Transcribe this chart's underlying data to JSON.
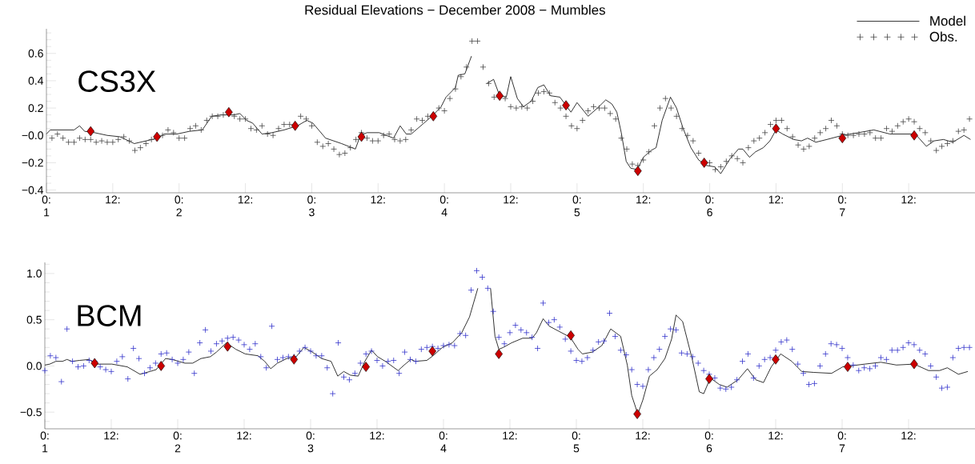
{
  "chart_data": [
    {
      "type": "line",
      "title": "Residual Elevations − December 2008 − Mumbles",
      "annotations": [
        "CS3X"
      ],
      "xlim": [
        "2008-12-01T00:00",
        "2008-12-08T00:00"
      ],
      "ylim": [
        -0.42,
        0.78
      ],
      "xticks": [
        {
          "value": "2008-12-01T00:00",
          "label": "0: 1"
        },
        {
          "value": "2008-12-01T12:00",
          "label": "12:"
        },
        {
          "value": "2008-12-02T00:00",
          "label": "0: 2"
        },
        {
          "value": "2008-12-02T12:00",
          "label": "12:"
        },
        {
          "value": "2008-12-03T00:00",
          "label": "0: 3"
        },
        {
          "value": "2008-12-03T12:00",
          "label": "12:"
        },
        {
          "value": "2008-12-04T00:00",
          "label": "0: 4"
        },
        {
          "value": "2008-12-04T12:00",
          "label": "12:"
        },
        {
          "value": "2008-12-05T00:00",
          "label": "0: 5"
        },
        {
          "value": "2008-12-05T12:00",
          "label": "12:"
        },
        {
          "value": "2008-12-06T00:00",
          "label": "0: 6"
        },
        {
          "value": "2008-12-06T12:00",
          "label": "12:"
        },
        {
          "value": "2008-12-07T00:00",
          "label": "0: 7"
        },
        {
          "value": "2008-12-07T12:00",
          "label": "12:"
        }
      ],
      "yticks": [
        {
          "value": -0.4,
          "label": "−0.4"
        },
        {
          "value": -0.2,
          "label": "−0.2"
        },
        {
          "value": 0,
          "label": "−0.0"
        },
        {
          "value": 0.2,
          "label": "0.2"
        },
        {
          "value": 0.4,
          "label": "0.4"
        },
        {
          "value": 0.6,
          "label": "0.6"
        },
        {
          "value": -0.35,
          "label": null
        },
        {
          "value": -0.3,
          "label": null
        },
        {
          "value": -0.25,
          "label": null
        },
        {
          "value": -0.15,
          "label": null
        },
        {
          "value": -0.1,
          "label": null
        },
        {
          "value": -0.05,
          "label": null
        },
        {
          "value": 0.05,
          "label": null
        },
        {
          "value": 0.1,
          "label": null
        },
        {
          "value": 0.15,
          "label": null
        },
        {
          "value": 0.25,
          "label": null
        },
        {
          "value": 0.3,
          "label": null
        },
        {
          "value": 0.35,
          "label": null
        },
        {
          "value": 0.45,
          "label": null
        },
        {
          "value": 0.5,
          "label": null
        },
        {
          "value": 0.55,
          "label": null
        },
        {
          "value": 0.65,
          "label": null
        },
        {
          "value": 0.7,
          "label": null
        },
        {
          "value": 0.75,
          "label": null
        }
      ],
      "legend": "top right",
      "series": [
        {
          "name": "Model",
          "marker": "none",
          "color": "#000000",
          "x": [
            "2008-12-01T00:00",
            "2008-12-01T00:42",
            "2008-12-01T05:00",
            "2008-12-01T06:00",
            "2008-12-01T06:54",
            "2008-12-01T08:42",
            "2008-12-01T11:00",
            "2008-12-01T13:18",
            "2008-12-01T15:54",
            "2008-12-01T20:12",
            "2008-12-01T21:18",
            "2008-12-01T23:36",
            "2008-12-02T01:54",
            "2008-12-02T04:12",
            "2008-12-02T05:54",
            "2008-12-02T07:36",
            "2008-12-02T09:54",
            "2008-12-02T11:00",
            "2008-12-02T12:12",
            "2008-12-02T13:18",
            "2008-12-02T15:00",
            "2008-12-02T16:48",
            "2008-12-02T19:00",
            "2008-12-02T21:24",
            "2008-12-02T23:06",
            "2008-12-03T00:12",
            "2008-12-03T02:30",
            "2008-12-03T05:24",
            "2008-12-03T07:54",
            "2008-12-03T08:48",
            "2008-12-03T10:00",
            "2008-12-03T12:12",
            "2008-12-03T14:48",
            "2008-12-03T16:00",
            "2008-12-03T17:06",
            "2008-12-03T18:00",
            "2008-12-03T20:18",
            "2008-12-03T22:00",
            "2008-12-03T23:24",
            "2008-12-04T00:18",
            "2008-12-04T02:00",
            "2008-12-04T02:30",
            "2008-12-04T03:42",
            "2008-12-04T04:54",
            "2008-12-04T06:00",
            "2008-12-04T06:54",
            "2008-12-04T07:42",
            "2008-12-04T08:54",
            "2008-12-04T10:00",
            "2008-12-04T11:12",
            "2008-12-04T12:00",
            "2008-12-04T13:12",
            "2008-12-04T14:18",
            "2008-12-04T15:42",
            "2008-12-04T16:54",
            "2008-12-04T18:00",
            "2008-12-04T19:12",
            "2008-12-04T20:54",
            "2008-12-04T22:54",
            "2008-12-05T00:00",
            "2008-12-05T02:00",
            "2008-12-05T03:42",
            "2008-12-05T05:12",
            "2008-12-05T06:18",
            "2008-12-05T07:12",
            "2008-12-05T08:00",
            "2008-12-05T08:54",
            "2008-12-05T09:42",
            "2008-12-05T10:54",
            "2008-12-05T12:00",
            "2008-12-05T13:24",
            "2008-12-05T14:18",
            "2008-12-05T15:24",
            "2008-12-05T16:54",
            "2008-12-05T18:00",
            "2008-12-05T19:12",
            "2008-12-05T20:36",
            "2008-12-05T22:00",
            "2008-12-05T23:24",
            "2008-12-06T00:54",
            "2008-12-06T02:00",
            "2008-12-06T03:42",
            "2008-12-06T05:12",
            "2008-12-06T06:00",
            "2008-12-06T07:12",
            "2008-12-06T08:18",
            "2008-12-06T09:42",
            "2008-12-06T10:54",
            "2008-12-06T12:00",
            "2008-12-06T13:12",
            "2008-12-06T15:12",
            "2008-12-06T16:36",
            "2008-12-06T17:42",
            "2008-12-06T19:12",
            "2008-12-06T21:12",
            "2008-12-07T00:00",
            "2008-12-07T02:54",
            "2008-12-07T05:42",
            "2008-12-07T08:36",
            "2008-12-07T13:12",
            "2008-12-07T15:12",
            "2008-12-07T16:36",
            "2008-12-07T18:18",
            "2008-12-07T20:00",
            "2008-12-07T22:00",
            "2008-12-07T23:12"
          ],
          "values": [
            0.01,
            0.04,
            0.04,
            0.07,
            0.03,
            0.02,
            0.0,
            -0.01,
            -0.06,
            -0.02,
            0.01,
            0.01,
            0.03,
            0.04,
            0.14,
            0.15,
            0.15,
            0.16,
            0.11,
            0.09,
            0.01,
            0.02,
            0.04,
            0.07,
            0.11,
            0.09,
            -0.02,
            -0.06,
            -0.1,
            0.0,
            0.02,
            0.02,
            -0.02,
            0.07,
            0.01,
            0.01,
            0.09,
            0.15,
            0.21,
            0.28,
            0.35,
            0.44,
            0.45,
            0.58,
            null,
            null,
            0.38,
            0.41,
            0.29,
            0.28,
            0.43,
            0.27,
            0.21,
            0.25,
            0.35,
            0.37,
            0.29,
            0.28,
            0.17,
            0.24,
            0.14,
            0.2,
            0.26,
            0.23,
            0.17,
            0.02,
            -0.19,
            -0.24,
            -0.25,
            -0.16,
            -0.11,
            -0.09,
            0.11,
            0.28,
            0.2,
            0.05,
            -0.09,
            -0.18,
            -0.22,
            -0.23,
            -0.28,
            -0.17,
            -0.1,
            -0.1,
            -0.16,
            -0.12,
            -0.09,
            -0.04,
            0.04,
            0.01,
            -0.03,
            -0.04,
            -0.02,
            -0.05,
            -0.03,
            0.0,
            0.02,
            0.04,
            0.01,
            0.01,
            -0.08,
            -0.04,
            -0.03,
            -0.05,
            0.0,
            -0.03
          ]
        },
        {
          "name": "Obs.",
          "type": "scatter",
          "marker": "cross",
          "color": "#444444",
          "x": [
            "2008-12-01T01:00",
            "2008-12-01T02:00",
            "2008-12-01T03:00",
            "2008-12-01T04:00",
            "2008-12-01T05:00",
            "2008-12-01T06:00",
            "2008-12-01T07:00",
            "2008-12-01T08:00",
            "2008-12-01T09:00",
            "2008-12-01T10:00",
            "2008-12-01T11:00",
            "2008-12-01T12:00",
            "2008-12-01T13:00",
            "2008-12-01T14:00",
            "2008-12-01T15:00",
            "2008-12-01T16:00",
            "2008-12-01T17:00",
            "2008-12-01T18:00",
            "2008-12-01T19:00",
            "2008-12-01T21:00",
            "2008-12-01T22:00",
            "2008-12-01T23:00",
            "2008-12-02T00:00",
            "2008-12-02T01:00",
            "2008-12-02T02:00",
            "2008-12-02T03:00",
            "2008-12-02T04:00",
            "2008-12-02T05:00",
            "2008-12-02T06:00",
            "2008-12-02T07:00",
            "2008-12-02T08:00",
            "2008-12-02T10:00",
            "2008-12-02T11:00",
            "2008-12-02T12:00",
            "2008-12-02T13:00",
            "2008-12-02T14:00",
            "2008-12-02T15:00",
            "2008-12-02T16:00",
            "2008-12-02T17:00",
            "2008-12-02T18:00",
            "2008-12-02T19:00",
            "2008-12-02T20:00",
            "2008-12-02T22:00",
            "2008-12-02T23:00",
            "2008-12-03T00:00",
            "2008-12-03T01:00",
            "2008-12-03T02:00",
            "2008-12-03T03:00",
            "2008-12-03T04:00",
            "2008-12-03T05:00",
            "2008-12-03T06:00",
            "2008-12-03T07:00",
            "2008-12-03T08:00",
            "2008-12-03T09:00",
            "2008-12-03T10:00",
            "2008-12-03T11:00",
            "2008-12-03T12:00",
            "2008-12-03T13:00",
            "2008-12-03T14:00",
            "2008-12-03T15:00",
            "2008-12-03T16:00",
            "2008-12-03T17:00",
            "2008-12-03T18:00",
            "2008-12-03T19:00",
            "2008-12-03T20:00",
            "2008-12-03T21:00",
            "2008-12-03T23:00",
            "2008-12-04T00:00",
            "2008-12-04T01:00",
            "2008-12-04T02:00",
            "2008-12-04T03:00",
            "2008-12-04T04:00",
            "2008-12-04T05:00",
            "2008-12-04T06:00",
            "2008-12-04T07:00",
            "2008-12-04T08:00",
            "2008-12-04T09:00",
            "2008-12-04T11:00",
            "2008-12-04T12:00",
            "2008-12-04T13:00",
            "2008-12-04T14:00",
            "2008-12-04T15:00",
            "2008-12-04T16:00",
            "2008-12-04T17:00",
            "2008-12-04T18:00",
            "2008-12-04T19:00",
            "2008-12-04T20:00",
            "2008-12-04T21:00",
            "2008-12-04T22:00",
            "2008-12-04T23:00",
            "2008-12-05T00:00",
            "2008-12-05T01:00",
            "2008-12-05T02:00",
            "2008-12-05T03:00",
            "2008-12-05T04:00",
            "2008-12-05T05:00",
            "2008-12-05T06:00",
            "2008-12-05T07:00",
            "2008-12-05T08:00",
            "2008-12-05T09:00",
            "2008-12-05T10:00",
            "2008-12-05T11:00",
            "2008-12-05T12:00",
            "2008-12-05T13:00",
            "2008-12-05T14:00",
            "2008-12-05T15:00",
            "2008-12-05T16:00",
            "2008-12-05T17:00",
            "2008-12-05T18:00",
            "2008-12-05T19:00",
            "2008-12-05T20:00",
            "2008-12-05T21:00",
            "2008-12-05T22:00",
            "2008-12-05T23:00",
            "2008-12-06T00:00",
            "2008-12-06T01:00",
            "2008-12-06T02:00",
            "2008-12-06T03:00",
            "2008-12-06T04:00",
            "2008-12-06T05:00",
            "2008-12-06T06:00",
            "2008-12-06T07:00",
            "2008-12-06T08:00",
            "2008-12-06T09:00",
            "2008-12-06T10:00",
            "2008-12-06T11:00",
            "2008-12-06T12:00",
            "2008-12-06T13:00",
            "2008-12-06T14:00",
            "2008-12-06T15:00",
            "2008-12-06T16:00",
            "2008-12-06T17:00",
            "2008-12-06T18:00",
            "2008-12-06T19:00",
            "2008-12-06T20:00",
            "2008-12-06T21:00",
            "2008-12-06T22:00",
            "2008-12-06T23:00",
            "2008-12-07T00:00",
            "2008-12-07T01:00",
            "2008-12-07T02:00",
            "2008-12-07T03:00",
            "2008-12-07T04:00",
            "2008-12-07T05:00",
            "2008-12-07T06:00",
            "2008-12-07T07:00",
            "2008-12-07T08:00",
            "2008-12-07T09:00",
            "2008-12-07T10:00",
            "2008-12-07T11:00",
            "2008-12-07T12:00",
            "2008-12-07T13:00",
            "2008-12-07T14:00",
            "2008-12-07T15:00",
            "2008-12-07T16:00",
            "2008-12-07T17:00",
            "2008-12-07T18:00",
            "2008-12-07T19:00",
            "2008-12-07T20:00",
            "2008-12-07T21:00",
            "2008-12-07T22:00",
            "2008-12-07T23:00"
          ],
          "values": [
            -0.02,
            0.01,
            -0.02,
            -0.05,
            -0.05,
            -0.02,
            -0.03,
            -0.03,
            -0.05,
            -0.04,
            -0.05,
            -0.05,
            -0.03,
            -0.01,
            -0.04,
            -0.11,
            -0.09,
            -0.06,
            -0.03,
            0.0,
            0.04,
            0.02,
            -0.02,
            -0.02,
            0.05,
            0.07,
            0.04,
            0.11,
            0.14,
            0.14,
            0.15,
            0.14,
            0.12,
            0.12,
            0.05,
            0.04,
            0.07,
            0.01,
            0.0,
            0.05,
            0.08,
            0.08,
            0.14,
            0.12,
            0.07,
            -0.05,
            -0.08,
            -0.06,
            -0.1,
            -0.14,
            -0.13,
            -0.09,
            -0.03,
            0.02,
            -0.02,
            -0.04,
            -0.04,
            0.0,
            0.01,
            -0.03,
            -0.04,
            -0.03,
            0.04,
            0.12,
            0.11,
            0.14,
            0.2,
            0.18,
            0.27,
            0.34,
            0.43,
            0.5,
            0.69,
            0.69,
            0.5,
            0.38,
            0.28,
            0.27,
            0.21,
            0.2,
            0.21,
            0.2,
            0.25,
            0.31,
            0.32,
            0.31,
            0.24,
            0.2,
            0.14,
            0.07,
            0.05,
            0.11,
            0.18,
            0.21,
            0.2,
            0.2,
            0.16,
            0.12,
            -0.02,
            -0.1,
            -0.21,
            -0.22,
            -0.18,
            -0.12,
            0.07,
            0.2,
            0.27,
            0.2,
            0.14,
            0.05,
            0.0,
            -0.04,
            -0.13,
            -0.19,
            -0.2,
            -0.25,
            -0.23,
            -0.19,
            -0.15,
            -0.17,
            -0.2,
            -0.09,
            -0.04,
            -0.02,
            0.02,
            0.08,
            0.11,
            0.11,
            0.05,
            -0.01,
            -0.07,
            -0.1,
            -0.08,
            -0.02,
            0.02,
            0.05,
            0.11,
            0.07,
            0.01,
            0.0,
            0.0,
            0.01,
            0.01,
            0.02,
            -0.02,
            -0.02,
            0.05,
            0.03,
            0.07,
            0.1,
            0.12,
            0.1,
            0.05,
            0.02,
            -0.04,
            -0.11,
            -0.08,
            -0.06,
            -0.04,
            0.03,
            0.04,
            0.12
          ]
        },
        {
          "type": "scatter",
          "marker": "diamond",
          "color": "#cc0000",
          "x": [
            "2008-12-01T08:00",
            "2008-12-01T20:00",
            "2008-12-02T09:00",
            "2008-12-02T21:00",
            "2008-12-03T09:00",
            "2008-12-03T22:00",
            "2008-12-04T10:00",
            "2008-12-04T22:00",
            "2008-12-05T11:00",
            "2008-12-05T23:00",
            "2008-12-06T12:00",
            "2008-12-07T00:00",
            "2008-12-07T13:00"
          ],
          "values": [
            0.03,
            -0.01,
            0.17,
            0.07,
            -0.01,
            0.14,
            0.29,
            0.22,
            -0.26,
            -0.2,
            0.05,
            -0.02,
            0.0
          ]
        }
      ]
    },
    {
      "type": "line",
      "annotations": [
        "BCM"
      ],
      "xlim": [
        "2008-12-01T00:00",
        "2008-12-08T00:00"
      ],
      "ylim": [
        -0.68,
        1.12
      ],
      "xticks": [
        {
          "value": "2008-12-01T00:00",
          "label": "0: 1"
        },
        {
          "value": "2008-12-01T12:00",
          "label": "12:"
        },
        {
          "value": "2008-12-02T00:00",
          "label": "0: 2"
        },
        {
          "value": "2008-12-02T12:00",
          "label": "12:"
        },
        {
          "value": "2008-12-03T00:00",
          "label": "0: 3"
        },
        {
          "value": "2008-12-03T12:00",
          "label": "12:"
        },
        {
          "value": "2008-12-04T00:00",
          "label": "0: 4"
        },
        {
          "value": "2008-12-04T12:00",
          "label": "12:"
        },
        {
          "value": "2008-12-05T00:00",
          "label": "0: 5"
        },
        {
          "value": "2008-12-05T12:00",
          "label": "12:"
        },
        {
          "value": "2008-12-06T00:00",
          "label": "0: 6"
        },
        {
          "value": "2008-12-06T12:00",
          "label": "12:"
        },
        {
          "value": "2008-12-07T00:00",
          "label": "0: 7"
        },
        {
          "value": "2008-12-07T12:00",
          "label": "12:"
        }
      ],
      "yticks": [
        {
          "value": -0.5,
          "label": "−0.5"
        },
        {
          "value": 0,
          "label": "0.0"
        },
        {
          "value": 0.5,
          "label": "0.5"
        },
        {
          "value": 1.0,
          "label": "1.0"
        },
        {
          "value": -0.6,
          "label": null
        },
        {
          "value": -0.4,
          "label": null
        },
        {
          "value": -0.3,
          "label": null
        },
        {
          "value": -0.2,
          "label": null
        },
        {
          "value": -0.1,
          "label": null
        },
        {
          "value": 0.1,
          "label": null
        },
        {
          "value": 0.2,
          "label": null
        },
        {
          "value": 0.3,
          "label": null
        },
        {
          "value": 0.4,
          "label": null
        },
        {
          "value": 0.6,
          "label": null
        },
        {
          "value": 0.7,
          "label": null
        },
        {
          "value": 0.8,
          "label": null
        },
        {
          "value": 0.9,
          "label": null
        },
        {
          "value": 1.1,
          "label": null
        }
      ],
      "series": [
        {
          "marker": "none",
          "color": "#000000",
          "x": [
            "2008-12-01T00:00",
            "2008-12-01T00:54",
            "2008-12-01T02:00",
            "2008-12-01T03:12",
            "2008-12-01T04:00",
            "2008-12-01T04:54",
            "2008-12-01T06:18",
            "2008-12-01T08:00",
            "2008-12-01T09:12",
            "2008-12-01T12:06",
            "2008-12-01T14:54",
            "2008-12-01T17:12",
            "2008-12-01T19:00",
            "2008-12-01T20:06",
            "2008-12-01T21:48",
            "2008-12-01T23:00",
            "2008-12-02T01:18",
            "2008-12-02T02:42",
            "2008-12-02T04:12",
            "2008-12-02T05:54",
            "2008-12-02T07:00",
            "2008-12-02T08:48",
            "2008-12-02T10:30",
            "2008-12-02T12:12",
            "2008-12-02T14:30",
            "2008-12-02T15:42",
            "2008-12-02T16:48",
            "2008-12-02T18:00",
            "2008-12-02T19:42",
            "2008-12-02T21:24",
            "2008-12-02T22:48",
            "2008-12-03T00:18",
            "2008-12-03T02:00",
            "2008-12-03T03:42",
            "2008-12-03T04:54",
            "2008-12-03T06:00",
            "2008-12-03T07:12",
            "2008-12-03T08:36",
            "2008-12-03T09:48",
            "2008-12-03T11:00",
            "2008-12-03T12:06",
            "2008-12-03T13:30",
            "2008-12-03T15:48",
            "2008-12-03T16:54",
            "2008-12-03T18:06",
            "2008-12-03T18:54",
            "2008-12-03T21:00",
            "2008-12-03T22:06",
            "2008-12-03T23:48",
            "2008-12-04T01:36",
            "2008-12-04T03:18",
            "2008-12-04T04:42",
            "2008-12-04T06:12",
            "2008-12-04T07:00",
            "2008-12-04T07:54",
            "2008-12-04T08:30",
            "2008-12-04T09:18",
            "2008-12-04T10:00",
            "2008-12-04T10:48",
            "2008-12-04T12:18",
            "2008-12-04T14:18",
            "2008-12-04T16:00",
            "2008-12-04T16:48",
            "2008-12-04T18:00",
            "2008-12-04T19:06",
            "2008-12-04T22:54",
            "2008-12-05T00:18",
            "2008-12-05T01:06",
            "2008-12-05T02:54",
            "2008-12-05T04:36",
            "2008-12-05T06:12",
            "2008-12-05T08:00",
            "2008-12-05T09:12",
            "2008-12-05T10:00",
            "2008-12-05T11:06",
            "2008-12-05T12:00",
            "2008-12-05T13:12",
            "2008-12-05T14:36",
            "2008-12-05T16:00",
            "2008-12-05T17:12",
            "2008-12-05T18:00",
            "2008-12-05T19:12",
            "2008-12-05T20:54",
            "2008-12-05T22:12",
            "2008-12-05T23:00",
            "2008-12-06T00:12",
            "2008-12-06T01:48",
            "2008-12-06T03:12",
            "2008-12-06T05:12",
            "2008-12-06T06:54",
            "2008-12-06T08:24",
            "2008-12-06T09:48",
            "2008-12-06T11:12",
            "2008-12-06T12:54",
            "2008-12-06T14:54",
            "2008-12-06T16:42",
            "2008-12-06T18:54",
            "2008-12-06T22:06",
            "2008-12-07T00:06",
            "2008-12-07T04:06",
            "2008-12-07T07:00",
            "2008-12-07T09:48",
            "2008-12-07T13:00",
            "2008-12-07T15:36",
            "2008-12-07T17:36",
            "2008-12-07T19:00",
            "2008-12-07T21:00",
            "2008-12-07T22:42"
          ],
          "values": [
            0.01,
            0.02,
            0.05,
            0.05,
            0.07,
            0.05,
            0.06,
            0.07,
            0.02,
            0.02,
            -0.01,
            -0.09,
            -0.06,
            -0.04,
            0.08,
            0.07,
            0.03,
            0.03,
            0.08,
            0.1,
            0.15,
            0.25,
            0.18,
            0.13,
            0.11,
            0.05,
            -0.03,
            0.03,
            0.08,
            0.1,
            0.2,
            0.15,
            0.08,
            0.05,
            -0.11,
            -0.06,
            -0.1,
            -0.11,
            0.05,
            0.17,
            0.1,
            0.05,
            -0.05,
            0.01,
            0.07,
            0.05,
            0.06,
            0.11,
            0.2,
            0.25,
            0.36,
            0.53,
            0.84,
            null,
            null,
            0.84,
            0.32,
            0.18,
            0.2,
            0.25,
            0.3,
            0.3,
            0.36,
            0.51,
            0.43,
            0.31,
            0.18,
            0.13,
            0.15,
            0.22,
            0.4,
            0.32,
            0.01,
            -0.32,
            -0.52,
            -0.37,
            -0.11,
            -0.04,
            0.08,
            0.29,
            0.55,
            0.48,
            0.08,
            -0.28,
            -0.3,
            -0.13,
            -0.2,
            -0.23,
            -0.15,
            -0.03,
            -0.15,
            -0.18,
            -0.01,
            0.13,
            0.05,
            -0.06,
            -0.07,
            -0.08,
            -0.01,
            0.02,
            0.04,
            0.01,
            0.02,
            -0.05,
            -0.05,
            -0.02,
            -0.09,
            -0.06
          ]
        },
        {
          "type": "scatter",
          "marker": "cross",
          "color": "#3333cc",
          "x": [
            "2008-12-01T00:00",
            "2008-12-01T01:00",
            "2008-12-01T02:00",
            "2008-12-01T03:00",
            "2008-12-01T04:00",
            "2008-12-01T05:00",
            "2008-12-01T06:00",
            "2008-12-01T07:00",
            "2008-12-01T08:00",
            "2008-12-01T09:00",
            "2008-12-01T10:00",
            "2008-12-01T11:00",
            "2008-12-01T12:00",
            "2008-12-01T13:00",
            "2008-12-01T14:00",
            "2008-12-01T15:00",
            "2008-12-01T16:00",
            "2008-12-01T17:00",
            "2008-12-01T18:00",
            "2008-12-01T19:00",
            "2008-12-01T20:00",
            "2008-12-01T21:00",
            "2008-12-01T22:00",
            "2008-12-01T23:00",
            "2008-12-02T00:00",
            "2008-12-02T01:00",
            "2008-12-02T02:00",
            "2008-12-02T03:00",
            "2008-12-02T04:00",
            "2008-12-02T05:00",
            "2008-12-02T06:00",
            "2008-12-02T07:00",
            "2008-12-02T08:00",
            "2008-12-02T09:00",
            "2008-12-02T10:00",
            "2008-12-02T11:00",
            "2008-12-02T12:00",
            "2008-12-02T13:00",
            "2008-12-02T14:00",
            "2008-12-02T15:00",
            "2008-12-02T16:00",
            "2008-12-02T17:00",
            "2008-12-02T18:00",
            "2008-12-02T19:00",
            "2008-12-02T20:00",
            "2008-12-02T21:00",
            "2008-12-02T22:00",
            "2008-12-02T23:00",
            "2008-12-03T00:00",
            "2008-12-03T01:00",
            "2008-12-03T02:00",
            "2008-12-03T03:00",
            "2008-12-03T04:00",
            "2008-12-03T05:00",
            "2008-12-03T06:00",
            "2008-12-03T07:00",
            "2008-12-03T08:00",
            "2008-12-03T09:00",
            "2008-12-03T10:00",
            "2008-12-03T11:00",
            "2008-12-03T12:00",
            "2008-12-03T13:00",
            "2008-12-03T14:00",
            "2008-12-03T15:00",
            "2008-12-03T16:00",
            "2008-12-03T17:00",
            "2008-12-03T18:00",
            "2008-12-03T19:00",
            "2008-12-03T20:00",
            "2008-12-03T21:00",
            "2008-12-03T22:00",
            "2008-12-03T23:00",
            "2008-12-04T00:00",
            "2008-12-04T01:00",
            "2008-12-04T02:00",
            "2008-12-04T03:00",
            "2008-12-04T04:00",
            "2008-12-04T05:00",
            "2008-12-04T06:00",
            "2008-12-04T07:00",
            "2008-12-04T08:00",
            "2008-12-04T09:00",
            "2008-12-04T10:00",
            "2008-12-04T11:00",
            "2008-12-04T12:00",
            "2008-12-04T13:00",
            "2008-12-04T14:00",
            "2008-12-04T15:00",
            "2008-12-04T16:00",
            "2008-12-04T17:00",
            "2008-12-04T18:00",
            "2008-12-04T19:00",
            "2008-12-04T20:00",
            "2008-12-04T21:00",
            "2008-12-04T22:00",
            "2008-12-04T23:00",
            "2008-12-05T00:00",
            "2008-12-05T01:00",
            "2008-12-05T02:00",
            "2008-12-05T03:00",
            "2008-12-05T04:00",
            "2008-12-05T05:00",
            "2008-12-05T06:00",
            "2008-12-05T07:00",
            "2008-12-05T08:00",
            "2008-12-05T09:00",
            "2008-12-05T10:00",
            "2008-12-05T11:00",
            "2008-12-05T12:00",
            "2008-12-05T13:00",
            "2008-12-05T14:00",
            "2008-12-05T15:00",
            "2008-12-05T16:00",
            "2008-12-05T17:00",
            "2008-12-05T18:00",
            "2008-12-05T19:00",
            "2008-12-05T20:00",
            "2008-12-05T21:00",
            "2008-12-05T22:00",
            "2008-12-05T23:00",
            "2008-12-06T00:00",
            "2008-12-06T01:00",
            "2008-12-06T02:00",
            "2008-12-06T03:00",
            "2008-12-06T04:00",
            "2008-12-06T05:00",
            "2008-12-06T06:00",
            "2008-12-06T07:00",
            "2008-12-06T08:00",
            "2008-12-06T09:00",
            "2008-12-06T10:00",
            "2008-12-06T11:00",
            "2008-12-06T12:00",
            "2008-12-06T13:00",
            "2008-12-06T14:00",
            "2008-12-06T15:00",
            "2008-12-06T16:00",
            "2008-12-06T17:00",
            "2008-12-06T18:00",
            "2008-12-06T19:00",
            "2008-12-06T20:00",
            "2008-12-06T21:00",
            "2008-12-06T22:00",
            "2008-12-06T23:00",
            "2008-12-07T00:00",
            "2008-12-07T01:00",
            "2008-12-07T02:00",
            "2008-12-07T03:00",
            "2008-12-07T04:00",
            "2008-12-07T05:00",
            "2008-12-07T06:00",
            "2008-12-07T07:00",
            "2008-12-07T08:00",
            "2008-12-07T09:00",
            "2008-12-07T10:00",
            "2008-12-07T11:00",
            "2008-12-07T12:00",
            "2008-12-07T13:00",
            "2008-12-07T14:00",
            "2008-12-07T15:00",
            "2008-12-07T16:00",
            "2008-12-07T17:00",
            "2008-12-07T18:00",
            "2008-12-07T19:00",
            "2008-12-07T20:00",
            "2008-12-07T21:00",
            "2008-12-07T22:00",
            "2008-12-07T23:00"
          ],
          "values": [
            -0.05,
            0.11,
            0.09,
            -0.17,
            0.4,
            0.05,
            -0.01,
            0.0,
            0.06,
            0.05,
            -0.01,
            -0.04,
            -0.06,
            0.05,
            0.1,
            -0.14,
            0.19,
            0.08,
            -0.08,
            -0.02,
            0.03,
            0.13,
            0.14,
            0.07,
            0.03,
            0.07,
            0.15,
            -0.08,
            0.25,
            0.39,
            0.16,
            0.24,
            0.27,
            0.3,
            0.31,
            0.28,
            0.23,
            0.18,
            0.24,
            0.1,
            -0.02,
            0.43,
            0.07,
            0.09,
            0.1,
            0.1,
            0.16,
            0.2,
            0.16,
            0.11,
            0.11,
            -0.02,
            -0.3,
            0.25,
            -0.12,
            -0.15,
            -0.08,
            0.03,
            0.13,
            0.16,
            0.06,
            0.0,
            0.05,
            0.06,
            -0.08,
            0.15,
            0.07,
            0.05,
            0.18,
            0.2,
            0.21,
            0.19,
            0.22,
            0.23,
            0.22,
            0.35,
            0.33,
            0.82,
            1.03,
            0.96,
            0.84,
            0.59,
            0.31,
            0.24,
            0.36,
            0.44,
            0.39,
            0.36,
            0.31,
            0.19,
            0.68,
            0.47,
            0.5,
            0.42,
            0.29,
            0.16,
            0.06,
            0.05,
            0.09,
            0.17,
            0.26,
            0.27,
            0.57,
            0.32,
            0.17,
            0.12,
            -0.04,
            -0.2,
            -0.22,
            -0.04,
            0.09,
            0.18,
            0.32,
            0.4,
            0.39,
            0.14,
            0.13,
            0.1,
            0.03,
            -0.05,
            -0.09,
            -0.13,
            -0.24,
            -0.25,
            -0.23,
            -0.15,
            0.05,
            0.13,
            -0.13,
            0.0,
            0.07,
            0.09,
            0.17,
            0.26,
            0.28,
            0.18,
            0.02,
            -0.08,
            -0.2,
            -0.19,
            0.0,
            0.13,
            0.24,
            0.23,
            0.19,
            0.09,
            0.01,
            -0.05,
            -0.02,
            -0.03,
            0.0,
            0.09,
            0.07,
            0.17,
            0.17,
            0.2,
            0.25,
            0.23,
            0.17,
            0.13,
            0.0,
            -0.12,
            -0.24,
            -0.23,
            0.09,
            0.19,
            0.2,
            0.2
          ]
        },
        {
          "type": "scatter",
          "marker": "diamond",
          "color": "#cc0000",
          "x": [
            "2008-12-01T09:00",
            "2008-12-01T21:00",
            "2008-12-02T09:00",
            "2008-12-02T21:00",
            "2008-12-03T10:00",
            "2008-12-03T22:00",
            "2008-12-04T10:00",
            "2008-12-04T23:00",
            "2008-12-05T11:00",
            "2008-12-06T00:00",
            "2008-12-06T12:00",
            "2008-12-07T01:00",
            "2008-12-07T13:00"
          ],
          "values": [
            0.03,
            0.0,
            0.21,
            0.07,
            -0.01,
            0.16,
            0.13,
            0.33,
            -0.52,
            -0.14,
            0.07,
            -0.01,
            0.02
          ]
        }
      ]
    }
  ]
}
